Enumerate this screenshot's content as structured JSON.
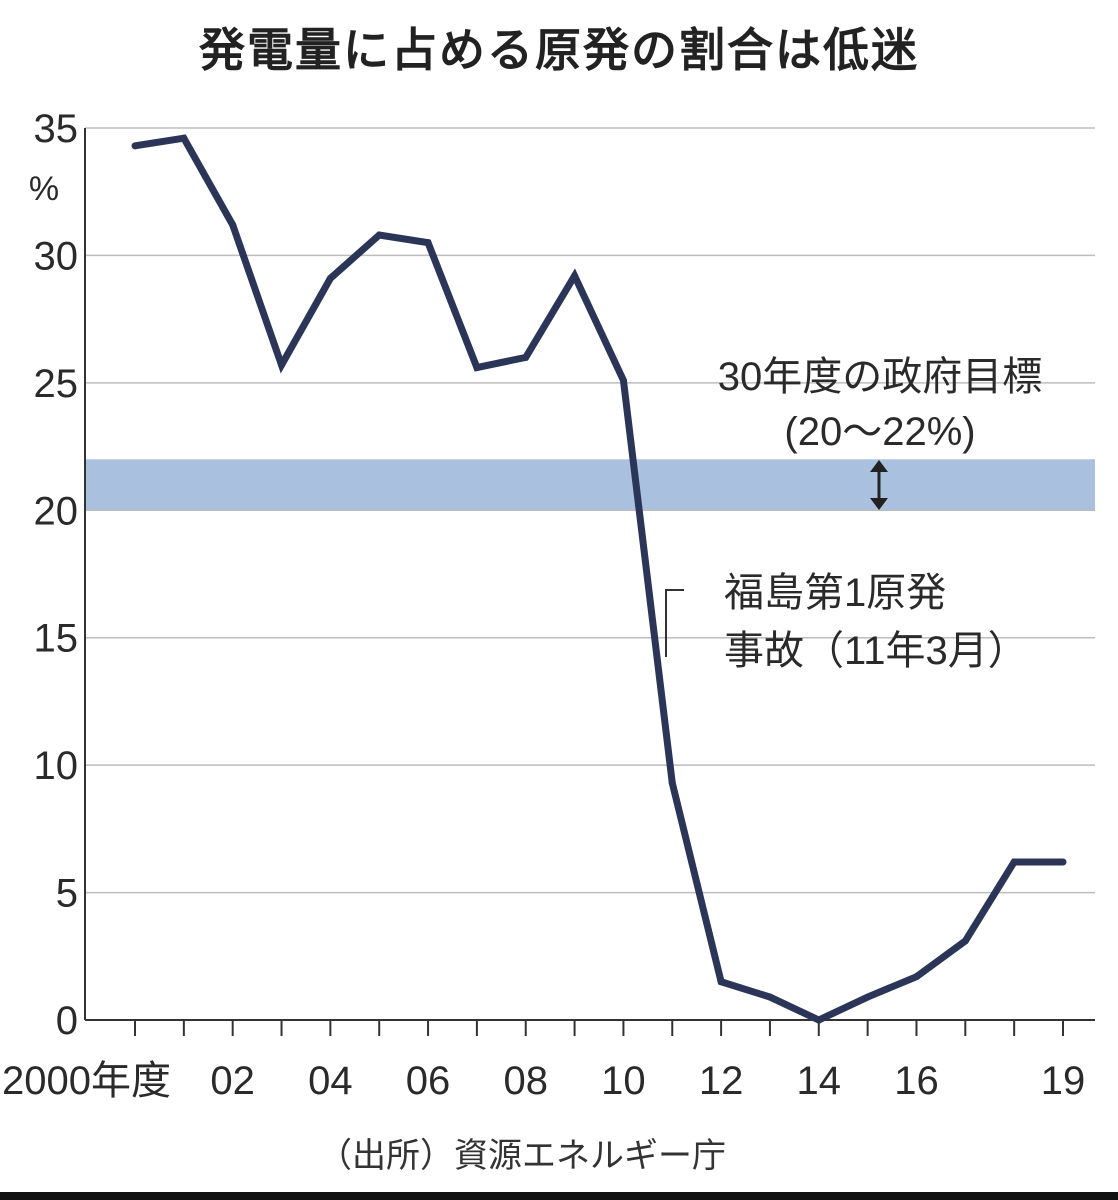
{
  "header": {
    "title": "発電量に占める原発の割合は低迷"
  },
  "footer": {
    "source": "（出所）資源エネルギー庁"
  },
  "colors": {
    "line": "#2b3557",
    "band": "#a9c1de",
    "grid": "#bdbdbd",
    "axis": "#333333"
  },
  "chart_data": {
    "type": "line",
    "title": "発電量に占める原発の割合は低迷",
    "ylabel": "%",
    "ylim": [
      0,
      35
    ],
    "yticks": [
      "0",
      "5",
      "10",
      "15",
      "20",
      "25",
      "30",
      "35"
    ],
    "xlim": [
      2000,
      2019
    ],
    "xtick_labels": [
      {
        "x": 2000,
        "label": "2000年度"
      },
      {
        "x": 2002,
        "label": "02"
      },
      {
        "x": 2004,
        "label": "04"
      },
      {
        "x": 2006,
        "label": "06"
      },
      {
        "x": 2008,
        "label": "08"
      },
      {
        "x": 2010,
        "label": "10"
      },
      {
        "x": 2012,
        "label": "12"
      },
      {
        "x": 2014,
        "label": "14"
      },
      {
        "x": 2016,
        "label": "16"
      },
      {
        "x": 2019,
        "label": "19"
      }
    ],
    "grid": true,
    "series": [
      {
        "x": [
          2000,
          2001,
          2002,
          2003,
          2004,
          2005,
          2006,
          2007,
          2008,
          2009,
          2010,
          2011,
          2012,
          2013,
          2014,
          2015,
          2016,
          2017,
          2018,
          2019
        ],
        "values": [
          34.3,
          34.6,
          31.2,
          25.7,
          29.1,
          30.8,
          30.5,
          25.6,
          26.0,
          29.2,
          25.1,
          9.3,
          1.5,
          0.9,
          0.0,
          0.9,
          1.7,
          3.1,
          6.2,
          6.2
        ]
      }
    ],
    "band": {
      "from": 20,
      "to": 22
    },
    "annotations": {
      "target_line1": "30年度の政府目標",
      "target_line2": "(20～22%)",
      "fukushima_line1": "福島第1原発",
      "fukushima_line2": "事故（11年3月）"
    }
  }
}
